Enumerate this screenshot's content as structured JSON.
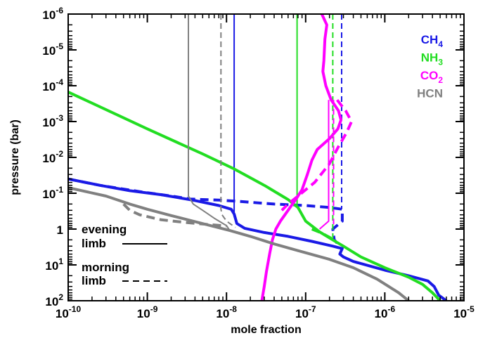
{
  "chart_data": {
    "type": "line",
    "title": "",
    "xlabel": "mole fraction",
    "ylabel": "pressure (bar)",
    "x_scale": "log",
    "y_scale": "log",
    "y_inverted": true,
    "xlim": [
      1e-10,
      1e-05
    ],
    "ylim": [
      100,
      1e-06
    ],
    "grid": false,
    "x_ticks": [
      {
        "value": 1e-10,
        "base": "10",
        "exp": "-10"
      },
      {
        "value": 1e-09,
        "base": "10",
        "exp": "-9"
      },
      {
        "value": 1e-08,
        "base": "10",
        "exp": "-8"
      },
      {
        "value": 1e-07,
        "base": "10",
        "exp": "-7"
      },
      {
        "value": 1e-06,
        "base": "10",
        "exp": "-6"
      },
      {
        "value": 1e-05,
        "base": "10",
        "exp": "-5"
      }
    ],
    "y_ticks": [
      {
        "value": 1e-06,
        "base": "10",
        "exp": "-6"
      },
      {
        "value": 1e-05,
        "base": "10",
        "exp": "-5"
      },
      {
        "value": 0.0001,
        "base": "10",
        "exp": "-4"
      },
      {
        "value": 0.001,
        "base": "10",
        "exp": "-3"
      },
      {
        "value": 0.01,
        "base": "10",
        "exp": "-2"
      },
      {
        "value": 0.1,
        "base": "10",
        "exp": "-1"
      },
      {
        "value": 1,
        "base": "1",
        "exp": ""
      },
      {
        "value": 10,
        "base": "10",
        "exp": "1"
      },
      {
        "value": 100,
        "base": "10",
        "exp": "2"
      }
    ],
    "legend": {
      "placement": "top-right",
      "entries": [
        {
          "text": "CH",
          "sub": "4",
          "color": "#1a1ae6"
        },
        {
          "text": "NH",
          "sub": "3",
          "color": "#22dd22"
        },
        {
          "text": "CO",
          "sub": "2",
          "color": "#ff00ff"
        },
        {
          "text": "HCN",
          "sub": "",
          "color": "#808080"
        }
      ]
    },
    "style_legend": {
      "placement": "bottom-left",
      "entries": [
        {
          "label_line1": "evening",
          "label_line2": "limb",
          "dash": "solid"
        },
        {
          "label_line1": "morning",
          "label_line2": "limb",
          "dash": "dashed"
        }
      ]
    },
    "series": [
      {
        "name": "CH4",
        "limb": "evening",
        "role": "photochemical",
        "color": "#1a1ae6",
        "dash": "solid",
        "width": 4,
        "points": [
          [
            1e-10,
            0.04
          ],
          [
            2.5e-10,
            0.06
          ],
          [
            6e-10,
            0.085
          ],
          [
            1.5e-09,
            0.11
          ],
          [
            4e-09,
            0.16
          ],
          [
            8e-09,
            0.22
          ],
          [
            1.15e-08,
            0.28
          ],
          [
            1.25e-08,
            0.38
          ],
          [
            1.35e-08,
            0.7
          ],
          [
            1.7e-08,
            0.95
          ],
          [
            3e-08,
            1.25
          ],
          [
            6e-08,
            1.6
          ],
          [
            1.2e-07,
            2.2
          ],
          [
            2.2e-07,
            3.0
          ],
          [
            2.6e-07,
            3.3
          ],
          [
            2.9e-07,
            3.5
          ],
          [
            2.7e-07,
            5.0
          ],
          [
            3e-07,
            6.0
          ],
          [
            4e-07,
            8.0
          ],
          [
            1e-06,
            14
          ],
          [
            2e-06,
            20
          ],
          [
            3.5e-06,
            28
          ],
          [
            4.2e-06,
            40
          ],
          [
            4.8e-06,
            70
          ],
          [
            6e-06,
            100
          ]
        ]
      },
      {
        "name": "CH4",
        "limb": "evening",
        "role": "quenched",
        "color": "#1a1ae6",
        "dash": "solid",
        "width": 2,
        "points": [
          [
            1.25e-08,
            1e-06
          ],
          [
            1.25e-08,
            0.38
          ]
        ]
      },
      {
        "name": "CH4",
        "limb": "morning",
        "role": "photochemical",
        "color": "#1a1ae6",
        "dash": "dashed",
        "width": 4,
        "points": [
          [
            1e-10,
            0.04
          ],
          [
            2.5e-10,
            0.06
          ],
          [
            8e-10,
            0.09
          ],
          [
            2e-09,
            0.12
          ],
          [
            3.5e-09,
            0.145
          ],
          [
            5e-09,
            0.15
          ],
          [
            8e-09,
            0.155
          ],
          [
            1.5e-08,
            0.17
          ],
          [
            4e-08,
            0.2
          ],
          [
            1e-07,
            0.22
          ],
          [
            2e-07,
            0.25
          ],
          [
            2.9e-07,
            0.28
          ],
          [
            2.9e-07,
            0.6
          ],
          [
            2.2e-07,
            1.0
          ],
          [
            2.3e-07,
            2.0
          ],
          [
            2.7e-07,
            3.0
          ]
        ]
      },
      {
        "name": "CH4",
        "limb": "morning",
        "role": "quenched",
        "color": "#1a1ae6",
        "dash": "dashed",
        "width": 2,
        "points": [
          [
            2.85e-07,
            1e-06
          ],
          [
            2.85e-07,
            0.28
          ]
        ]
      },
      {
        "name": "NH3",
        "limb": "evening",
        "role": "photochemical",
        "color": "#22dd22",
        "dash": "solid",
        "width": 4,
        "points": [
          [
            1e-10,
            0.00015
          ],
          [
            1e-09,
            0.0016
          ],
          [
            5e-09,
            0.008
          ],
          [
            1.2e-08,
            0.02
          ],
          [
            3e-08,
            0.06
          ],
          [
            6e-08,
            0.15
          ],
          [
            8e-08,
            0.25
          ],
          [
            1e-07,
            0.6
          ],
          [
            1.5e-07,
            1.2
          ],
          [
            2.2e-07,
            2.0
          ],
          [
            3e-07,
            3.0
          ],
          [
            5e-07,
            6
          ],
          [
            1e-06,
            12
          ],
          [
            2e-06,
            22
          ],
          [
            3e-06,
            35
          ],
          [
            4e-06,
            60
          ],
          [
            5e-06,
            100
          ]
        ]
      },
      {
        "name": "NH3",
        "limb": "evening",
        "role": "quenched",
        "color": "#22dd22",
        "dash": "solid",
        "width": 2,
        "points": [
          [
            7.8e-08,
            1e-06
          ],
          [
            7.8e-08,
            0.25
          ]
        ]
      },
      {
        "name": "NH3",
        "limb": "morning",
        "role": "photochemical",
        "color": "#22dd22",
        "dash": "dashed",
        "width": 4,
        "points": [
          [
            1.2e-07,
            1.0
          ],
          [
            1.6e-07,
            1.3
          ],
          [
            2.1e-07,
            1.8
          ]
        ]
      },
      {
        "name": "NH3",
        "limb": "morning",
        "role": "quenched",
        "color": "#22dd22",
        "dash": "dashed",
        "width": 2,
        "points": [
          [
            2.2e-07,
            1e-06
          ],
          [
            2.2e-07,
            1.8
          ]
        ]
      },
      {
        "name": "CO2",
        "limb": "evening",
        "role": "profile",
        "color": "#ff00ff",
        "dash": "solid",
        "width": 4,
        "points": [
          [
            1.6e-07,
            1e-06
          ],
          [
            1.85e-07,
            2e-06
          ],
          [
            1.75e-07,
            5e-06
          ],
          [
            1.7e-07,
            2e-05
          ],
          [
            1.65e-07,
            4e-05
          ],
          [
            1.8e-07,
            0.0001
          ],
          [
            2.1e-07,
            0.00025
          ],
          [
            2.6e-07,
            0.0005
          ],
          [
            2.8e-07,
            0.0009
          ],
          [
            2.55e-07,
            0.0016
          ],
          [
            2e-07,
            0.003
          ],
          [
            1.4e-07,
            0.006
          ],
          [
            1.2e-07,
            0.012
          ],
          [
            1.05e-07,
            0.03
          ],
          [
            9e-08,
            0.08
          ],
          [
            7.5e-08,
            0.15
          ],
          [
            6e-08,
            0.3
          ],
          [
            4.8e-08,
            0.6
          ],
          [
            4.2e-08,
            1.0
          ],
          [
            3.8e-08,
            2.0
          ],
          [
            3.5e-08,
            5
          ],
          [
            3.2e-08,
            15
          ],
          [
            3e-08,
            40
          ],
          [
            2.8e-08,
            100
          ]
        ]
      },
      {
        "name": "CO2",
        "limb": "evening",
        "role": "quenched",
        "color": "#ff00ff",
        "dash": "solid",
        "width": 2,
        "points": [
          [
            1.95e-07,
            0.00025
          ],
          [
            1.95e-07,
            0.6
          ],
          [
            1.5e-07,
            1.0
          ]
        ]
      },
      {
        "name": "CO2",
        "limb": "morning",
        "role": "profile",
        "color": "#ff00ff",
        "dash": "dashed",
        "width": 4,
        "points": [
          [
            2.5e-07,
            0.00025
          ],
          [
            3.2e-07,
            0.0005
          ],
          [
            3.8e-07,
            0.001
          ],
          [
            3.3e-07,
            0.002
          ],
          [
            2.6e-07,
            0.005
          ],
          [
            2e-07,
            0.015
          ],
          [
            1.3e-07,
            0.05
          ],
          [
            8e-08,
            0.12
          ],
          [
            6e-08,
            0.2
          ],
          [
            5e-08,
            0.3
          ]
        ]
      },
      {
        "name": "CO2",
        "limb": "morning",
        "role": "quenched",
        "color": "#ff00ff",
        "dash": "dashed",
        "width": 2,
        "points": [
          [
            2.25e-07,
            0.00025
          ],
          [
            2.25e-07,
            0.8
          ]
        ]
      },
      {
        "name": "HCN",
        "limb": "evening",
        "role": "photochemical",
        "color": "#808080",
        "dash": "solid",
        "width": 4,
        "points": [
          [
            1e-10,
            0.07
          ],
          [
            3e-10,
            0.12
          ],
          [
            6e-10,
            0.2
          ],
          [
            1e-09,
            0.28
          ],
          [
            2e-09,
            0.42
          ],
          [
            4e-09,
            0.62
          ],
          [
            7e-09,
            0.85
          ],
          [
            1.1e-08,
            1.1
          ],
          [
            2e-08,
            1.6
          ],
          [
            4e-08,
            2.6
          ],
          [
            8e-08,
            4.0
          ],
          [
            2e-07,
            7
          ],
          [
            4e-07,
            12
          ],
          [
            8e-07,
            25
          ],
          [
            1.5e-06,
            60
          ],
          [
            2e-06,
            100
          ]
        ]
      },
      {
        "name": "HCN",
        "limb": "evening",
        "role": "quenched",
        "color": "#808080",
        "dash": "solid",
        "width": 2,
        "points": [
          [
            3.3e-09,
            1e-06
          ],
          [
            3.3e-09,
            0.12
          ],
          [
            3.8e-09,
            0.2
          ],
          [
            5e-09,
            0.3
          ],
          [
            7e-09,
            0.5
          ],
          [
            1e-08,
            0.8
          ],
          [
            1.1e-08,
            1.1
          ]
        ]
      },
      {
        "name": "HCN",
        "limb": "morning",
        "role": "photochemical",
        "color": "#808080",
        "dash": "dashed",
        "width": 4,
        "points": [
          [
            5e-10,
            0.2
          ],
          [
            6e-10,
            0.3
          ],
          [
            8e-10,
            0.4
          ],
          [
            1.5e-09,
            0.55
          ],
          [
            3e-09,
            0.65
          ],
          [
            6e-09,
            0.75
          ],
          [
            1e-08,
            0.82
          ]
        ]
      },
      {
        "name": "HCN",
        "limb": "morning",
        "role": "quenched",
        "color": "#808080",
        "dash": "dashed",
        "width": 2,
        "points": [
          [
            8.5e-09,
            1e-06
          ],
          [
            8.5e-09,
            0.28
          ],
          [
            8.8e-09,
            0.4
          ],
          [
            1e-08,
            0.6
          ],
          [
            1.3e-08,
            0.9
          ]
        ]
      }
    ]
  }
}
